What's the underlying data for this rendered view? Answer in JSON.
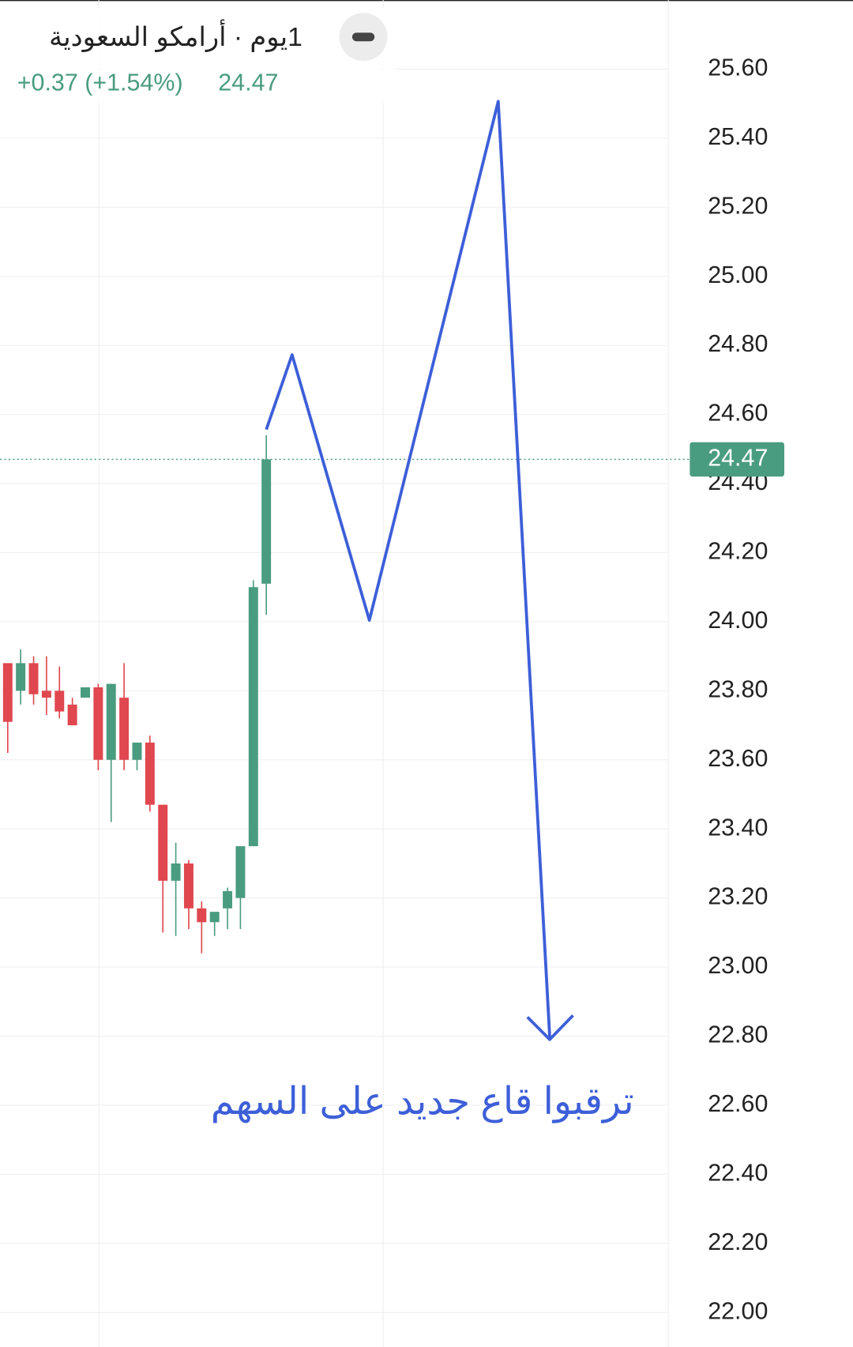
{
  "chart_data": {
    "type": "candlestick",
    "title": "1يوم · أرامكو السعودية",
    "change": "+0.37 (+1.54%)",
    "last_price": 24.47,
    "annotation": "ترقبوا قاع جديد على السهم",
    "up_color": "#4a9c80",
    "down_color": "#e0474f",
    "ylim": [
      21.9,
      25.8
    ],
    "yticks": [
      {
        "value": 25.6,
        "label": "25.60"
      },
      {
        "value": 25.4,
        "label": "25.40"
      },
      {
        "value": 25.2,
        "label": "25.20"
      },
      {
        "value": 25,
        "label": "25.00"
      },
      {
        "value": 24.8,
        "label": "24.80"
      },
      {
        "value": 24.6,
        "label": "24.60"
      },
      {
        "value": 24.4,
        "label": "24.40"
      },
      {
        "value": 24.2,
        "label": "24.20"
      },
      {
        "value": 24,
        "label": "24.00"
      },
      {
        "value": 23.8,
        "label": "23.80"
      },
      {
        "value": 23.6,
        "label": "23.60"
      },
      {
        "value": 23.4,
        "label": "23.40"
      },
      {
        "value": 23.2,
        "label": "23.20"
      },
      {
        "value": 23,
        "label": "23.00"
      },
      {
        "value": 22.8,
        "label": "22.80"
      },
      {
        "value": 22.6,
        "label": "22.60"
      },
      {
        "value": 22.4,
        "label": "22.40"
      },
      {
        "value": 22.2,
        "label": "22.20"
      },
      {
        "value": 22,
        "label": "22.00"
      }
    ],
    "grid": true,
    "open": [
      23.88,
      23.8,
      23.88,
      23.8,
      23.8,
      23.76,
      23.78,
      23.81,
      23.6,
      23.78,
      23.6,
      23.65,
      23.47,
      23.25,
      23.3,
      23.17,
      23.13,
      23.17,
      23.2,
      23.35,
      24.11
    ],
    "high": [
      23.88,
      23.92,
      23.9,
      23.9,
      23.87,
      23.78,
      23.81,
      23.82,
      23.82,
      23.88,
      23.65,
      23.67,
      23.47,
      23.36,
      23.31,
      23.19,
      23.16,
      23.23,
      23.35,
      24.12,
      24.54
    ],
    "low": [
      23.62,
      23.76,
      23.76,
      23.73,
      23.72,
      23.7,
      23.78,
      23.57,
      23.42,
      23.57,
      23.57,
      23.45,
      23.1,
      23.09,
      23.11,
      23.04,
      23.09,
      23.11,
      23.11,
      23.35,
      24.02
    ],
    "close": [
      23.71,
      23.88,
      23.79,
      23.78,
      23.74,
      23.7,
      23.81,
      23.6,
      23.82,
      23.6,
      23.65,
      23.47,
      23.25,
      23.3,
      23.17,
      23.13,
      23.16,
      23.22,
      23.35,
      24.1,
      24.47
    ]
  }
}
